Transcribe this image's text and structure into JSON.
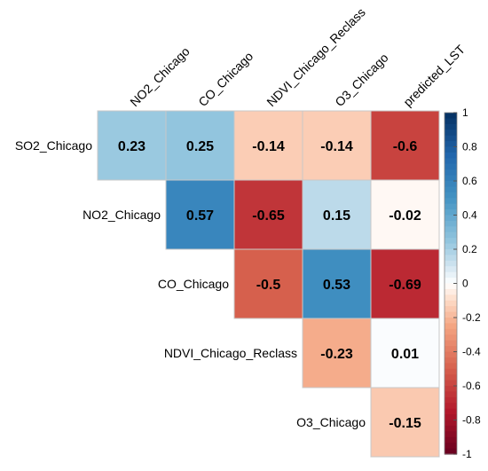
{
  "chart_data": {
    "type": "heatmap",
    "title": "",
    "columns": [
      "NO2_Chicago",
      "CO_Chicago",
      "NDVI_Chicago_Reclass",
      "O3_Chicago",
      "predicted_LST"
    ],
    "rows": [
      "SO2_Chicago",
      "NO2_Chicago",
      "CO_Chicago",
      "NDVI_Chicago_Reclass",
      "O3_Chicago"
    ],
    "cells": [
      {
        "row": 0,
        "col": 0,
        "value": 0.23
      },
      {
        "row": 0,
        "col": 1,
        "value": 0.25
      },
      {
        "row": 0,
        "col": 2,
        "value": -0.14
      },
      {
        "row": 0,
        "col": 3,
        "value": -0.14
      },
      {
        "row": 0,
        "col": 4,
        "value": -0.6
      },
      {
        "row": 1,
        "col": 1,
        "value": 0.57
      },
      {
        "row": 1,
        "col": 2,
        "value": -0.65
      },
      {
        "row": 1,
        "col": 3,
        "value": 0.15
      },
      {
        "row": 1,
        "col": 4,
        "value": -0.02
      },
      {
        "row": 2,
        "col": 2,
        "value": -0.5
      },
      {
        "row": 2,
        "col": 3,
        "value": 0.53
      },
      {
        "row": 2,
        "col": 4,
        "value": -0.69
      },
      {
        "row": 3,
        "col": 3,
        "value": -0.23
      },
      {
        "row": 3,
        "col": 4,
        "value": 0.01
      },
      {
        "row": 4,
        "col": 4,
        "value": -0.15
      }
    ],
    "colorbar": {
      "range": [
        -1,
        1
      ],
      "ticks": [
        "1",
        "0.8",
        "0.6",
        "0.4",
        "0.2",
        "0",
        "-0.2",
        "-0.4",
        "-0.6",
        "-0.8",
        "-1"
      ],
      "colors": {
        "negative_end": "#67001F",
        "mid": "#FFFFFF",
        "positive_end": "#053061"
      }
    },
    "grid": true,
    "legend": "right"
  }
}
